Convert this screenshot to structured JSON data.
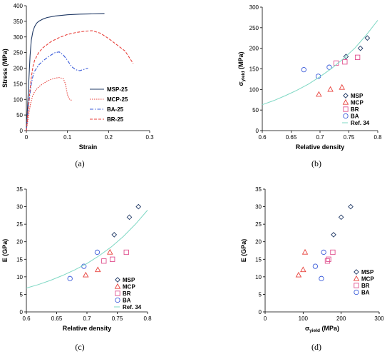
{
  "chart_data": [
    {
      "panel": "a",
      "type": "line",
      "caption": "(a)",
      "xlabel": "Strain",
      "ylabel": "Stress (MPa)",
      "xlim": [
        0,
        0.3
      ],
      "ylim": [
        0,
        400
      ],
      "xticks": [
        "0",
        "0.1",
        "0.2",
        "0.3"
      ],
      "yticks": [
        "0",
        "50",
        "100",
        "150",
        "200",
        "250",
        "300",
        "350",
        "400"
      ],
      "legend_position": "bottom-right",
      "series": [
        {
          "name": "MSP-25",
          "color": "#1f3864",
          "dash": "solid",
          "x": [
            0,
            0.003,
            0.006,
            0.009,
            0.012,
            0.016,
            0.02,
            0.025,
            0.03,
            0.04,
            0.05,
            0.07,
            0.1,
            0.13,
            0.16,
            0.19
          ],
          "y": [
            0,
            80,
            160,
            240,
            290,
            318,
            333,
            344,
            350,
            357,
            362,
            367,
            371,
            373,
            374,
            375
          ]
        },
        {
          "name": "MCP-25",
          "color": "#e8423c",
          "dash": "dot",
          "x": [
            0,
            0.005,
            0.01,
            0.015,
            0.02,
            0.03,
            0.04,
            0.05,
            0.06,
            0.07,
            0.08,
            0.09,
            0.095,
            0.1,
            0.105,
            0.11
          ],
          "y": [
            0,
            45,
            85,
            110,
            125,
            140,
            150,
            158,
            164,
            168,
            170,
            166,
            150,
            115,
            100,
            97
          ]
        },
        {
          "name": "BA-25",
          "color": "#3a5bd9",
          "dash": "dashdot",
          "x": [
            0,
            0.004,
            0.008,
            0.012,
            0.016,
            0.02,
            0.03,
            0.04,
            0.05,
            0.06,
            0.07,
            0.08,
            0.09,
            0.1,
            0.11,
            0.12,
            0.13,
            0.14,
            0.15
          ],
          "y": [
            0,
            60,
            110,
            150,
            175,
            190,
            210,
            223,
            233,
            242,
            250,
            252,
            242,
            225,
            205,
            195,
            192,
            196,
            200
          ]
        },
        {
          "name": "BR-25",
          "color": "#e8423c",
          "dash": "dash",
          "x": [
            0,
            0.004,
            0.008,
            0.012,
            0.016,
            0.02,
            0.03,
            0.04,
            0.06,
            0.08,
            0.1,
            0.12,
            0.14,
            0.16,
            0.18,
            0.2,
            0.22,
            0.24,
            0.25,
            0.26
          ],
          "y": [
            0,
            60,
            120,
            170,
            205,
            225,
            250,
            265,
            285,
            298,
            308,
            314,
            318,
            320,
            312,
            295,
            275,
            255,
            235,
            215
          ]
        }
      ]
    },
    {
      "panel": "b",
      "type": "scatter",
      "caption": "(b)",
      "xlabel": "Relative density",
      "ylabel_main": "σ",
      "ylabel_sub": "yield",
      "ylabel_unit": " (MPa)",
      "xlim": [
        0.6,
        0.8
      ],
      "ylim": [
        0,
        300
      ],
      "xticks": [
        "0.6",
        "0.65",
        "0.7",
        "0.75",
        "0.8"
      ],
      "yticks": [
        "0",
        "50",
        "100",
        "150",
        "200",
        "250",
        "300"
      ],
      "legend_position": "bottom-right",
      "series": [
        {
          "name": "MSP",
          "marker": "diamond",
          "color": "#1f3864",
          "x": [
            0.745,
            0.77,
            0.782
          ],
          "y": [
            180,
            200,
            225
          ]
        },
        {
          "name": "MCP",
          "marker": "triangle",
          "color": "#e8423c",
          "x": [
            0.698,
            0.718,
            0.738
          ],
          "y": [
            88,
            100,
            105
          ]
        },
        {
          "name": "BR",
          "marker": "square",
          "color": "#e0508e",
          "x": [
            0.728,
            0.743,
            0.765
          ],
          "y": [
            164,
            167,
            178
          ]
        },
        {
          "name": "BA",
          "marker": "circle",
          "color": "#3a5bd9",
          "x": [
            0.672,
            0.697,
            0.716
          ],
          "y": [
            148,
            132,
            154
          ]
        },
        {
          "name": "Ref. 34",
          "marker": "line",
          "color": "#7fd8c4",
          "x": [
            0.6,
            0.62,
            0.64,
            0.66,
            0.68,
            0.7,
            0.72,
            0.74,
            0.76,
            0.78,
            0.8
          ],
          "y": [
            63,
            73,
            85,
            98,
            113,
            131,
            151,
            174,
            200,
            232,
            268
          ]
        }
      ]
    },
    {
      "panel": "c",
      "type": "scatter",
      "caption": "(c)",
      "xlabel": "Relative density",
      "ylabel": "E (GPa)",
      "xlim": [
        0.6,
        0.8
      ],
      "ylim": [
        0,
        35
      ],
      "xticks": [
        "0.6",
        "0.65",
        "0.7",
        "0.75",
        "0.8"
      ],
      "yticks": [
        "0",
        "5",
        "10",
        "15",
        "20",
        "25",
        "30",
        "35"
      ],
      "legend_position": "bottom-right",
      "series": [
        {
          "name": "MSP",
          "marker": "diamond",
          "color": "#1f3864",
          "x": [
            0.745,
            0.77,
            0.785
          ],
          "y": [
            22,
            27,
            30
          ]
        },
        {
          "name": "MCP",
          "marker": "triangle",
          "color": "#e8423c",
          "x": [
            0.698,
            0.718,
            0.738
          ],
          "y": [
            10.5,
            12,
            17
          ]
        },
        {
          "name": "BR",
          "marker": "square",
          "color": "#e0508e",
          "x": [
            0.728,
            0.742,
            0.765
          ],
          "y": [
            14.5,
            15,
            17
          ]
        },
        {
          "name": "BA",
          "marker": "circle",
          "color": "#3a5bd9",
          "x": [
            0.672,
            0.695,
            0.717
          ],
          "y": [
            9.5,
            13,
            17
          ]
        },
        {
          "name": "Ref. 34",
          "marker": "line",
          "color": "#7fd8c4",
          "x": [
            0.6,
            0.62,
            0.64,
            0.66,
            0.68,
            0.7,
            0.72,
            0.74,
            0.76,
            0.78,
            0.8
          ],
          "y": [
            6.8,
            7.8,
            9.0,
            10.4,
            12.0,
            13.8,
            16.0,
            18.5,
            21.5,
            25.0,
            29.0
          ]
        }
      ]
    },
    {
      "panel": "d",
      "type": "scatter",
      "caption": "(d)",
      "xlabel_main": "σ",
      "xlabel_sub": "yield",
      "xlabel_unit": " (MPa)",
      "ylabel": "E (GPa)",
      "xlim": [
        0,
        300
      ],
      "ylim": [
        0,
        35
      ],
      "xticks": [
        "0",
        "100",
        "200",
        "300"
      ],
      "yticks": [
        "0",
        "5",
        "10",
        "15",
        "20",
        "25",
        "30",
        "35"
      ],
      "legend_position": "bottom-right",
      "series": [
        {
          "name": "MSP",
          "marker": "diamond",
          "color": "#1f3864",
          "x": [
            180,
            200,
            225
          ],
          "y": [
            22,
            27,
            30
          ]
        },
        {
          "name": "MCP",
          "marker": "triangle",
          "color": "#e8423c",
          "x": [
            88,
            100,
            105
          ],
          "y": [
            10.5,
            12,
            17
          ]
        },
        {
          "name": "BR",
          "marker": "square",
          "color": "#e0508e",
          "x": [
            164,
            167,
            178
          ],
          "y": [
            14.5,
            15,
            17
          ]
        },
        {
          "name": "BA",
          "marker": "circle",
          "color": "#3a5bd9",
          "x": [
            132,
            148,
            154
          ],
          "y": [
            13,
            9.5,
            17
          ]
        }
      ]
    }
  ]
}
